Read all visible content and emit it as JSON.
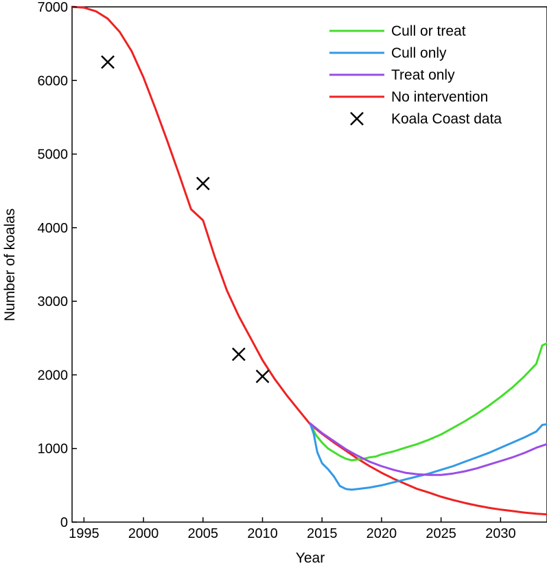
{
  "chart_data": {
    "type": "line",
    "xlabel": "Year",
    "ylabel": "Number of koalas",
    "xlim": [
      1994,
      2033.9
    ],
    "ylim": [
      0,
      7000
    ],
    "xticks": [
      1995,
      2000,
      2005,
      2010,
      2015,
      2020,
      2025,
      2030
    ],
    "yticks": [
      0,
      1000,
      2000,
      3000,
      4000,
      5000,
      6000,
      7000
    ],
    "grid": false,
    "legend_position": "top-right",
    "series": [
      {
        "name": "Cull or treat",
        "color": "#44dd2c",
        "x": [
          2014,
          2014.5,
          2015,
          2015.5,
          2016,
          2016.5,
          2017,
          2017.5,
          2018,
          2018.5,
          2019,
          2019.5,
          2020,
          2021,
          2022,
          2023,
          2024,
          2025,
          2026,
          2027,
          2028,
          2029,
          2030,
          2031,
          2032,
          2033,
          2033.5,
          2033.9
        ],
        "y": [
          1340,
          1180,
          1080,
          1000,
          950,
          900,
          860,
          840,
          850,
          860,
          880,
          890,
          920,
          960,
          1010,
          1060,
          1120,
          1190,
          1280,
          1370,
          1470,
          1580,
          1700,
          1830,
          1980,
          2150,
          2400,
          2430
        ]
      },
      {
        "name": "Cull only",
        "color": "#3399e6",
        "x": [
          2014,
          2014.3,
          2014.6,
          2015,
          2015.5,
          2016,
          2016.5,
          2017,
          2017.5,
          2018,
          2019,
          2020,
          2021,
          2022,
          2023,
          2024,
          2025,
          2026,
          2027,
          2028,
          2029,
          2030,
          2031,
          2032,
          2033,
          2033.5,
          2033.9
        ],
        "y": [
          1340,
          1200,
          950,
          800,
          720,
          620,
          490,
          450,
          440,
          450,
          470,
          500,
          540,
          580,
          620,
          660,
          710,
          760,
          820,
          880,
          940,
          1010,
          1080,
          1150,
          1230,
          1320,
          1330
        ]
      },
      {
        "name": "Treat only",
        "color": "#9a4de6",
        "x": [
          2014,
          2015,
          2016,
          2017,
          2018,
          2019,
          2020,
          2021,
          2022,
          2023,
          2024,
          2025,
          2026,
          2027,
          2028,
          2029,
          2030,
          2031,
          2032,
          2033,
          2033.9
        ],
        "y": [
          1340,
          1210,
          1100,
          990,
          900,
          820,
          760,
          710,
          670,
          650,
          640,
          640,
          660,
          690,
          730,
          780,
          830,
          880,
          940,
          1010,
          1060
        ]
      },
      {
        "name": "No intervention",
        "color": "#ee2222",
        "x": [
          1994,
          1995,
          1996,
          1997,
          1998,
          1999,
          2000,
          2001,
          2002,
          2003,
          2004,
          2005,
          2006,
          2007,
          2008,
          2009,
          2010,
          2011,
          2012,
          2013,
          2014,
          2015,
          2016,
          2017,
          2018,
          2019,
          2020,
          2021,
          2022,
          2023,
          2024,
          2025,
          2026,
          2027,
          2028,
          2029,
          2030,
          2031,
          2032,
          2033,
          2033.9
        ],
        "y": [
          7000,
          6990,
          6940,
          6840,
          6660,
          6400,
          6040,
          5620,
          5180,
          4720,
          4250,
          4100,
          3600,
          3150,
          2800,
          2500,
          2200,
          1950,
          1730,
          1530,
          1330,
          1200,
          1080,
          970,
          860,
          760,
          670,
          590,
          520,
          450,
          400,
          345,
          300,
          260,
          225,
          195,
          170,
          150,
          130,
          115,
          105
        ]
      }
    ],
    "scatter": {
      "name": "Koala Coast data",
      "color": "#000000",
      "marker": "x",
      "x": [
        1997,
        2005,
        2008,
        2010
      ],
      "y": [
        6250,
        4600,
        2280,
        1980
      ]
    }
  }
}
